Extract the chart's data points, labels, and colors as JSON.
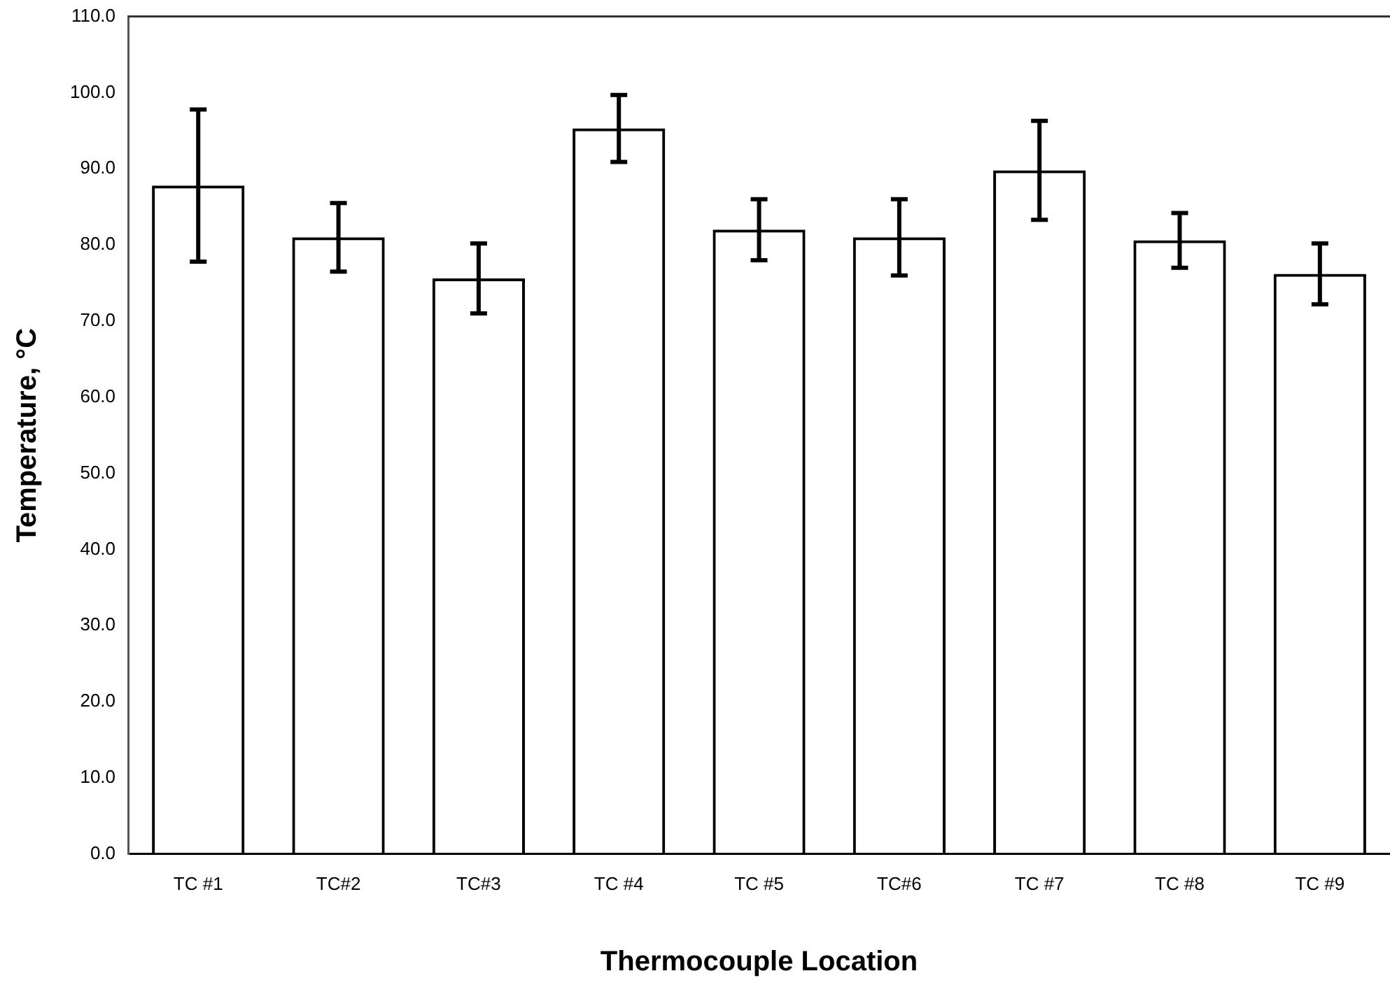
{
  "chart_data": {
    "type": "bar",
    "xlabel": "Thermocouple Location",
    "ylabel": "Temperature, °C",
    "categories": [
      "TC #1",
      "TC#2",
      "TC#3",
      "TC #4",
      "TC #5",
      "TC#6",
      "TC #7",
      "TC #8",
      "TC #9"
    ],
    "values": [
      87.8,
      81,
      75.6,
      95.3,
      82,
      81,
      89.8,
      80.6,
      76.2
    ],
    "errors": [
      10,
      4.5,
      4.6,
      4.4,
      4,
      5,
      6.5,
      3.6,
      4
    ],
    "color": "#000000",
    "ylim": [
      0,
      110
    ],
    "yticks": [
      {
        "value": 0,
        "label": "0.0"
      },
      {
        "value": 10,
        "label": "10.0"
      },
      {
        "value": 20,
        "label": "20.0"
      },
      {
        "value": 30,
        "label": "30.0"
      },
      {
        "value": 40,
        "label": "40.0"
      },
      {
        "value": 50,
        "label": "50.0"
      },
      {
        "value": 60,
        "label": "60.0"
      },
      {
        "value": 70,
        "label": "70.0"
      },
      {
        "value": 80,
        "label": "80.0"
      },
      {
        "value": 90,
        "label": "90.0"
      },
      {
        "value": 100,
        "label": "100.0"
      },
      {
        "value": 110,
        "label": "110.0"
      }
    ],
    "grid": false,
    "legend": false
  }
}
